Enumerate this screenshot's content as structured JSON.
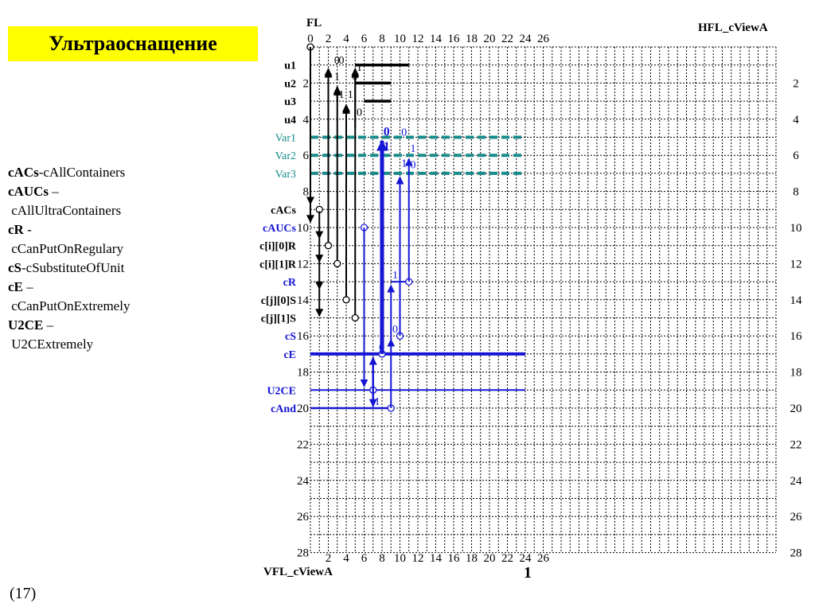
{
  "title": "Ультраоснащение",
  "legend": [
    {
      "bold": "cACs",
      "rest": "-cAllContainers"
    },
    {
      "bold": "cAUCs",
      "rest": " –"
    },
    {
      "bold": "",
      "rest": " cAllUltraContainers"
    },
    {
      "bold": "cR",
      "rest": " -"
    },
    {
      "bold": "",
      "rest": " cCanPutOnRegulary"
    },
    {
      "bold": "cS",
      "rest": "-cSubstituteOfUnit"
    },
    {
      "bold": "cE",
      "rest": " –"
    },
    {
      "bold": "",
      "rest": " cCanPutOnExtremely"
    },
    {
      "bold": "U2CE",
      "rest": " –"
    },
    {
      "bold": "",
      "rest": " U2CExtremely"
    }
  ],
  "slide_number": "(17)",
  "diagram": {
    "top_left_label": "FL",
    "top_right_label": "HFL_cViewA",
    "bottom_left_label": "VFL_cViewA",
    "bottom_marker": "1",
    "top_ticks": [
      "0",
      "2",
      "4",
      "6",
      "8",
      "10",
      "12",
      "14",
      "16",
      "18",
      "20",
      "22",
      "24",
      "26"
    ],
    "bottom_ticks": [
      "2",
      "4",
      "6",
      "8",
      "10",
      "12",
      "14",
      "16",
      "18",
      "20",
      "22",
      "24",
      "26"
    ],
    "left_ticks": [
      "2",
      "4",
      "6",
      "8",
      "10",
      "12",
      "14",
      "16",
      "18",
      "20",
      "22",
      "24",
      "26",
      "28"
    ],
    "right_ticks": [
      "2",
      "4",
      "6",
      "8",
      "10",
      "12",
      "14",
      "16",
      "18",
      "20",
      "22",
      "24",
      "26",
      "28"
    ],
    "row_labels": [
      {
        "text": "u1",
        "row": 1,
        "color": "black"
      },
      {
        "text": "u2",
        "row": 2,
        "color": "black"
      },
      {
        "text": "u3",
        "row": 3,
        "color": "black"
      },
      {
        "text": "u4",
        "row": 4,
        "color": "black"
      },
      {
        "text": "Var1",
        "row": 5,
        "color": "teal"
      },
      {
        "text": "Var2",
        "row": 6,
        "color": "teal"
      },
      {
        "text": "Var3",
        "row": 7,
        "color": "teal"
      },
      {
        "text": "cACs",
        "row": 9,
        "color": "black"
      },
      {
        "text": "cAUCs",
        "row": 10,
        "color": "blue"
      },
      {
        "text": "c[i][0]R",
        "row": 11,
        "color": "black"
      },
      {
        "text": "c[i][1]R",
        "row": 12,
        "color": "black"
      },
      {
        "text": "cR",
        "row": 13,
        "color": "blue"
      },
      {
        "text": "c[j][0]S",
        "row": 14,
        "color": "black"
      },
      {
        "text": "c[j][1]S",
        "row": 15,
        "color": "black"
      },
      {
        "text": "cS",
        "row": 16,
        "color": "blue"
      },
      {
        "text": "cE",
        "row": 17,
        "color": "blue"
      },
      {
        "text": "U2CE",
        "row": 19,
        "color": "blue"
      },
      {
        "text": "cAnd",
        "row": 20,
        "color": "blue"
      }
    ],
    "bit_labels": [
      {
        "t": "0",
        "x": 5.3,
        "y": 0.7,
        "c": "black"
      },
      {
        "t": "0",
        "x": 6.3,
        "y": 0.7,
        "c": "black"
      },
      {
        "t": "1",
        "x": 10.3,
        "y": 1.1,
        "c": "black"
      },
      {
        "t": "1",
        "x": 5.3,
        "y": 1.6,
        "c": "black"
      },
      {
        "t": "0",
        "x": 9.3,
        "y": 1.6,
        "c": "black"
      },
      {
        "t": "1",
        "x": 6.3,
        "y": 2.6,
        "c": "black"
      },
      {
        "t": "1",
        "x": 8.3,
        "y": 2.6,
        "c": "black"
      },
      {
        "t": "0",
        "x": 10.3,
        "y": 3.6,
        "c": "black"
      },
      {
        "t": "0",
        "x": 16.3,
        "y": 4.7,
        "c": "blue",
        "bold": true
      },
      {
        "t": "1",
        "x": 16.3,
        "y": 5.5,
        "c": "blue",
        "bold": true
      },
      {
        "t": "0",
        "x": 20.3,
        "y": 4.7,
        "c": "blue"
      },
      {
        "t": "1",
        "x": 22.3,
        "y": 5.6,
        "c": "blue"
      },
      {
        "t": "1",
        "x": 20.3,
        "y": 6.4,
        "c": "blue"
      },
      {
        "t": "0",
        "x": 22.3,
        "y": 6.5,
        "c": "blue"
      },
      {
        "t": "1",
        "x": 18.3,
        "y": 12.6,
        "c": "blue"
      },
      {
        "t": "0",
        "x": 18.3,
        "y": 15.6,
        "c": "blue"
      },
      {
        "t": "0",
        "x": 15.3,
        "y": 16.6,
        "c": "blue"
      },
      {
        "t": "1",
        "x": 14.3,
        "y": 19.6,
        "c": "blue"
      }
    ]
  }
}
